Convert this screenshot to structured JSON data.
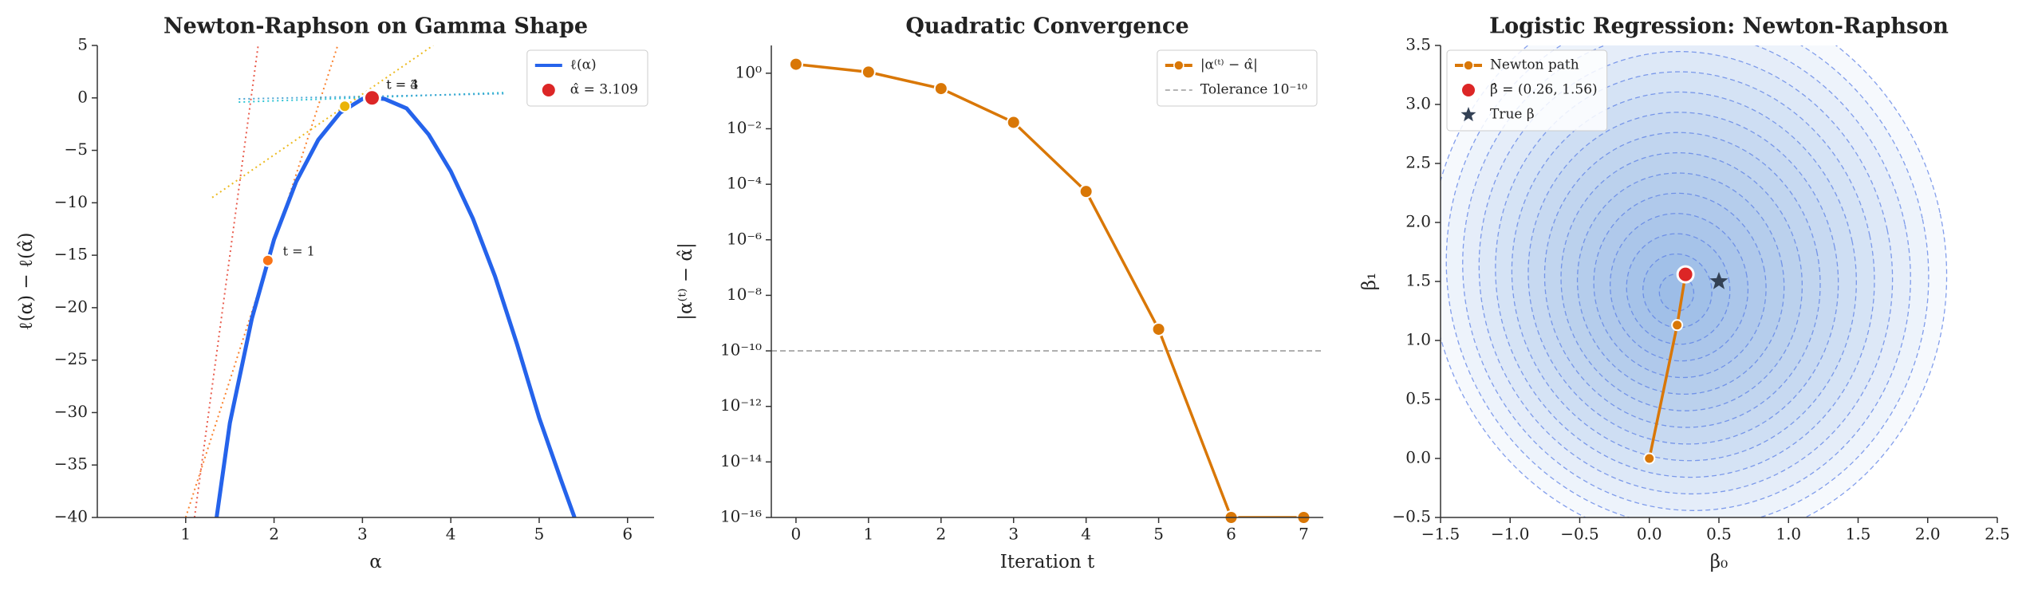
{
  "chart_data": [
    {
      "type": "line",
      "title": "Newton-Raphson on Gamma Shape",
      "xlabel": "α",
      "ylabel": "ℓ(α) − ℓ(α̂)",
      "xlim": [
        0,
        6.3
      ],
      "ylim": [
        -40,
        5
      ],
      "xticks": [
        1,
        2,
        3,
        4,
        5,
        6
      ],
      "yticks": [
        {
          "value": -40,
          "label": "−40"
        },
        {
          "value": -35,
          "label": "−35"
        },
        {
          "value": -30,
          "label": "−30"
        },
        {
          "value": -25,
          "label": "−25"
        },
        {
          "value": -20,
          "label": "−20"
        },
        {
          "value": -15,
          "label": "−15"
        },
        {
          "value": -10,
          "label": "−10"
        },
        {
          "value": -5,
          "label": "−5"
        },
        0,
        5
      ],
      "legend": "upper right",
      "series": [
        {
          "name": "ℓ(α)",
          "color": "#2563eb",
          "x": [
            1.35,
            1.5,
            1.75,
            2.0,
            2.25,
            2.5,
            2.75,
            3.0,
            3.109,
            3.25,
            3.5,
            3.75,
            4.0,
            4.25,
            4.5,
            4.75,
            5.0,
            5.25,
            5.4
          ],
          "values": [
            -40,
            -31,
            -21,
            -13.5,
            -8,
            -4,
            -1.4,
            -0.1,
            0,
            -0.1,
            -1,
            -3.5,
            -7,
            -11.5,
            -17,
            -23.5,
            -30.5,
            -36.5,
            -40
          ]
        }
      ],
      "tangents": [
        {
          "color": "#e74c3c",
          "x": [
            1.1,
            1.82
          ],
          "values": [
            -40,
            5
          ]
        },
        {
          "color": "#f97316",
          "x": [
            1.0,
            2.72
          ],
          "values": [
            -40,
            5
          ]
        },
        {
          "color": "#eab308",
          "x": [
            1.3,
            3.8
          ],
          "values": [
            -9.5,
            5
          ]
        },
        {
          "color": "#17becf",
          "x": [
            1.6,
            4.6
          ],
          "values": [
            -0.4,
            0.5
          ]
        },
        {
          "color": "#3b9fd0",
          "x": [
            1.6,
            4.6
          ],
          "values": [
            -0.1,
            0.4
          ]
        }
      ],
      "iterates": {
        "x": [
          1.93,
          2.8
        ],
        "values": [
          -15.5,
          -0.8
        ],
        "colors": [
          "#f97316",
          "#eab308"
        ]
      },
      "points": [
        {
          "name": "α̂ = 3.109",
          "color": "#dc2626",
          "x": 3.109,
          "value": 0
        }
      ],
      "annotations": [
        {
          "text": "t = 1",
          "x": 2.1,
          "y": -14.7,
          "color": "#f97316"
        },
        {
          "text": "t = 3",
          "x": 3.27,
          "y": 1.2,
          "color": "#17becf"
        },
        {
          "text": "t = 4",
          "x": 3.27,
          "y": 1.2,
          "color": "#3b82f6"
        }
      ]
    },
    {
      "type": "line",
      "title": "Quadratic Convergence",
      "xlabel": "Iteration t",
      "ylabel": "|α⁽ᵗ⁾ − α̂|",
      "log_y": true,
      "xlim": [
        -0.34,
        7.27
      ],
      "ylim": [
        1e-16,
        10
      ],
      "xticks": [
        0,
        1,
        2,
        3,
        4,
        5,
        6,
        7
      ],
      "yticks": [
        {
          "value": 1,
          "label": "10⁰"
        },
        {
          "value": 0.01,
          "label": "10⁻²"
        },
        {
          "value": 0.0001,
          "label": "10⁻⁴"
        },
        {
          "value": 1e-06,
          "label": "10⁻⁶"
        },
        {
          "value": 1e-08,
          "label": "10⁻⁸"
        },
        {
          "value": 1e-10,
          "label": "10⁻¹⁰"
        },
        {
          "value": 1e-12,
          "label": "10⁻¹²"
        },
        {
          "value": 1e-14,
          "label": "10⁻¹⁴"
        },
        {
          "value": 1e-16,
          "label": "10⁻¹⁶"
        }
      ],
      "legend": "upper right",
      "series": [
        {
          "name": "|α⁽ᵗ⁾ − α̂|",
          "color": "#d97706",
          "marker": "o",
          "x": [
            0,
            1,
            2,
            3,
            4,
            5,
            6,
            7
          ],
          "values": [
            2.1,
            1.1,
            0.28,
            0.017,
            5.5e-05,
            6e-10,
            1e-16,
            1e-16
          ]
        }
      ],
      "hlines": [
        {
          "name": "Tolerance 10⁻¹⁰",
          "value": 1e-10,
          "color": "#aaaaaa"
        }
      ]
    },
    {
      "type": "contour",
      "title": "Logistic Regression: Newton-Raphson",
      "xlabel": "β₀",
      "ylabel": "β₁",
      "xlim": [
        -1.5,
        2.5
      ],
      "ylim": [
        -0.5,
        3.5
      ],
      "xticks": [
        {
          "value": -1.5,
          "label": "−1.5"
        },
        {
          "value": -1,
          "label": "−1.0"
        },
        {
          "value": -0.5,
          "label": "−0.5"
        },
        {
          "value": 0,
          "label": "0.0"
        },
        0.5,
        {
          "value": 1,
          "label": "1.0"
        },
        1.5,
        {
          "value": 2,
          "label": "2.0"
        },
        2.5
      ],
      "yticks": [
        {
          "value": -0.5,
          "label": "−0.5"
        },
        {
          "value": 0,
          "label": "0.0"
        },
        0.5,
        {
          "value": 1,
          "label": "1.0"
        },
        1.5,
        {
          "value": 2,
          "label": "2.0"
        },
        2.5,
        {
          "value": 3,
          "label": "3.0"
        },
        3.5
      ],
      "legend": "upper left",
      "series": [
        {
          "name": "Newton path",
          "color": "#d97706",
          "marker": "o",
          "x": [
            0,
            0.2,
            0.26
          ],
          "values": [
            0,
            1.13,
            1.56
          ]
        }
      ],
      "points": [
        {
          "name": "β̂ = (0.26, 1.56)",
          "color": "#dc2626",
          "x": 0.26,
          "value": 1.56
        },
        {
          "name": "True β",
          "color": "#334155",
          "x": 0.5,
          "value": 1.5,
          "marker": "star"
        }
      ]
    }
  ]
}
